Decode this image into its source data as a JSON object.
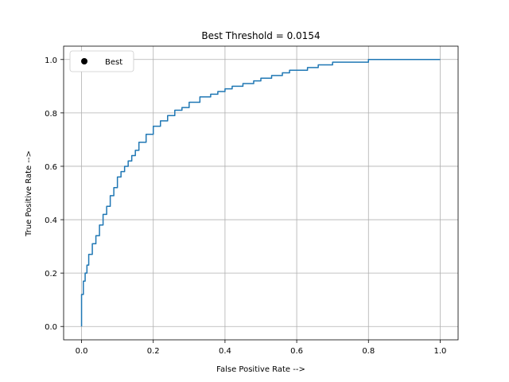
{
  "chart_data": {
    "type": "line",
    "title": "Best Threshold = 0.0154",
    "xlabel": "False Positive Rate -->",
    "ylabel": "True Positive Rate -->",
    "xlim": [
      -0.05,
      1.05
    ],
    "ylim": [
      -0.05,
      1.05
    ],
    "x_ticks": [
      "0.0",
      "0.2",
      "0.4",
      "0.6",
      "0.8",
      "1.0"
    ],
    "y_ticks": [
      "0.0",
      "0.2",
      "0.4",
      "0.6",
      "0.8",
      "1.0"
    ],
    "grid": true,
    "legend": {
      "placement": "upper-left",
      "entries": [
        {
          "label": "Best",
          "marker": "circle",
          "color": "#000000"
        }
      ]
    },
    "series": [
      {
        "color": "#1f77b4",
        "x": [
          0.0,
          0.0,
          0.005,
          0.01,
          0.015,
          0.02,
          0.03,
          0.04,
          0.05,
          0.06,
          0.07,
          0.08,
          0.09,
          0.1,
          0.11,
          0.12,
          0.13,
          0.14,
          0.15,
          0.16,
          0.18,
          0.2,
          0.22,
          0.24,
          0.26,
          0.28,
          0.3,
          0.33,
          0.36,
          0.38,
          0.4,
          0.42,
          0.45,
          0.48,
          0.5,
          0.53,
          0.56,
          0.58,
          0.6,
          0.63,
          0.66,
          0.7,
          0.75,
          0.8,
          0.84,
          0.9,
          1.0
        ],
        "y": [
          0.0,
          0.07,
          0.12,
          0.17,
          0.2,
          0.23,
          0.27,
          0.31,
          0.34,
          0.38,
          0.42,
          0.45,
          0.49,
          0.52,
          0.56,
          0.58,
          0.6,
          0.62,
          0.64,
          0.66,
          0.69,
          0.72,
          0.75,
          0.77,
          0.79,
          0.81,
          0.82,
          0.84,
          0.86,
          0.87,
          0.88,
          0.89,
          0.9,
          0.91,
          0.92,
          0.93,
          0.94,
          0.95,
          0.96,
          0.96,
          0.97,
          0.98,
          0.99,
          0.99,
          1.0,
          1.0,
          1.0
        ]
      }
    ],
    "best_point": {
      "label": "Best",
      "color": "#000000"
    }
  }
}
